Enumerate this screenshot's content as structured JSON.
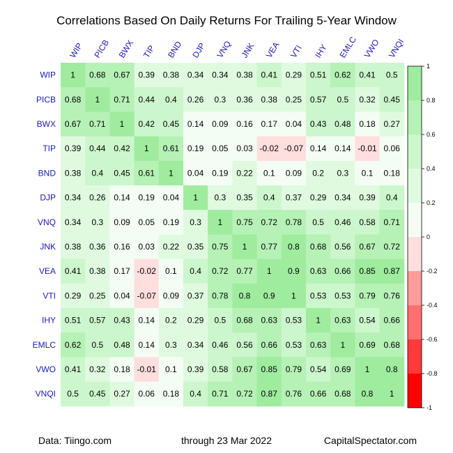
{
  "chart_data": {
    "type": "heatmap",
    "title": "Correlations Based On Daily Returns For Trailing 5-Year Window",
    "labels": [
      "WIP",
      "PICB",
      "BWX",
      "TIP",
      "BND",
      "DJP",
      "VNQ",
      "JNK",
      "VEA",
      "VTI",
      "IHY",
      "EMLC",
      "VWO",
      "VNQI"
    ],
    "matrix": [
      [
        1,
        0.68,
        0.67,
        0.39,
        0.38,
        0.34,
        0.34,
        0.38,
        0.41,
        0.29,
        0.51,
        0.62,
        0.41,
        0.5
      ],
      [
        0.68,
        1,
        0.71,
        0.44,
        0.4,
        0.26,
        0.3,
        0.36,
        0.38,
        0.25,
        0.57,
        0.5,
        0.32,
        0.45
      ],
      [
        0.67,
        0.71,
        1,
        0.42,
        0.45,
        0.14,
        0.09,
        0.16,
        0.17,
        0.04,
        0.43,
        0.48,
        0.18,
        0.27
      ],
      [
        0.39,
        0.44,
        0.42,
        1,
        0.61,
        0.19,
        0.05,
        0.03,
        -0.02,
        -0.07,
        0.14,
        0.14,
        -0.01,
        0.06
      ],
      [
        0.38,
        0.4,
        0.45,
        0.61,
        1,
        0.04,
        0.19,
        0.22,
        0.1,
        0.09,
        0.2,
        0.3,
        0.1,
        0.18
      ],
      [
        0.34,
        0.26,
        0.14,
        0.19,
        0.04,
        1,
        0.3,
        0.35,
        0.4,
        0.37,
        0.29,
        0.34,
        0.39,
        0.4
      ],
      [
        0.34,
        0.3,
        0.09,
        0.05,
        0.19,
        0.3,
        1,
        0.75,
        0.72,
        0.78,
        0.5,
        0.46,
        0.58,
        0.71
      ],
      [
        0.38,
        0.36,
        0.16,
        0.03,
        0.22,
        0.35,
        0.75,
        1,
        0.77,
        0.8,
        0.68,
        0.56,
        0.67,
        0.72
      ],
      [
        0.41,
        0.38,
        0.17,
        -0.02,
        0.1,
        0.4,
        0.72,
        0.77,
        1,
        0.9,
        0.63,
        0.66,
        0.85,
        0.87
      ],
      [
        0.29,
        0.25,
        0.04,
        -0.07,
        0.09,
        0.37,
        0.78,
        0.8,
        0.9,
        1,
        0.53,
        0.53,
        0.79,
        0.76
      ],
      [
        0.51,
        0.57,
        0.43,
        0.14,
        0.2,
        0.29,
        0.5,
        0.68,
        0.63,
        0.53,
        1,
        0.63,
        0.54,
        0.66
      ],
      [
        0.62,
        0.5,
        0.48,
        0.14,
        0.3,
        0.34,
        0.46,
        0.56,
        0.66,
        0.53,
        0.63,
        1,
        0.69,
        0.68
      ],
      [
        0.41,
        0.32,
        0.18,
        -0.01,
        0.1,
        0.39,
        0.58,
        0.67,
        0.85,
        0.79,
        0.54,
        0.69,
        1,
        0.8
      ],
      [
        0.5,
        0.45,
        0.27,
        0.06,
        0.18,
        0.4,
        0.71,
        0.72,
        0.87,
        0.76,
        0.66,
        0.68,
        0.8,
        1
      ]
    ],
    "colorbar": {
      "range": [
        -1,
        1
      ],
      "ticks": [
        "1",
        "0.8",
        "0.6",
        "0.4",
        "0.2",
        "0",
        "-0.2",
        "-0.4",
        "-0.6",
        "-0.8",
        "-1"
      ],
      "positive_colors": [
        "#f3fdf3",
        "#e0fae0",
        "#ccf6cc",
        "#b6f1b6",
        "#9fec9f"
      ],
      "negative_colors": [
        "#ffdede",
        "#ff9c9c",
        "#ff6f6f",
        "#ff3a3a",
        "#ff0000"
      ]
    },
    "label_color": "#1a1ab4"
  },
  "footer": {
    "source": "Data: Tiingo.com",
    "date": "through 23 Mar 2022",
    "site": "CapitalSpectator.com"
  }
}
